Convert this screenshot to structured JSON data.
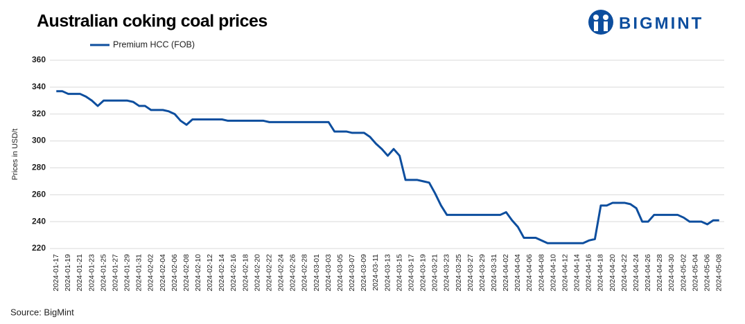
{
  "chart_data": {
    "type": "line",
    "title": "Australian coking coal prices",
    "brand": "BIGMINT",
    "source": "Source: BigMint",
    "y_label": "Prices in USD/t",
    "ylim": [
      220,
      360
    ],
    "yticks": [
      220,
      240,
      260,
      280,
      300,
      320,
      340,
      360
    ],
    "grid": true,
    "legend": "top",
    "categories": [
      "2024-01-17",
      null,
      "2024-01-19",
      null,
      "2024-01-21",
      null,
      "2024-01-23",
      null,
      "2024-01-25",
      null,
      "2024-01-27",
      null,
      "2024-01-29",
      null,
      "2024-01-31",
      null,
      "2024-02-02",
      null,
      "2024-02-04",
      null,
      "2024-02-06",
      null,
      "2024-02-08",
      null,
      "2024-02-10",
      null,
      "2024-02-12",
      null,
      "2024-02-14",
      null,
      "2024-02-16",
      null,
      "2024-02-18",
      null,
      "2024-02-20",
      null,
      "2024-02-22",
      null,
      "2024-02-24",
      null,
      "2024-02-26",
      null,
      "2024-02-28",
      null,
      "2024-03-01",
      null,
      "2024-03-03",
      null,
      "2024-03-05",
      null,
      "2024-03-07",
      null,
      "2024-03-09",
      null,
      "2024-03-11",
      null,
      "2024-03-13",
      null,
      "2024-03-15",
      null,
      "2024-03-17",
      null,
      "2024-03-19",
      null,
      "2024-03-21",
      null,
      "2024-03-23",
      null,
      "2024-03-25",
      null,
      "2024-03-27",
      null,
      "2024-03-29",
      null,
      "2024-03-31",
      null,
      "2024-04-02",
      null,
      "2024-04-04",
      null,
      "2024-04-06",
      null,
      "2024-04-08",
      null,
      "2024-04-10",
      null,
      "2024-04-12",
      null,
      "2024-04-14",
      null,
      "2024-04-16",
      null,
      "2024-04-18",
      null,
      "2024-04-20",
      null,
      "2024-04-22",
      null,
      "2024-04-24",
      null,
      "2024-04-26",
      null,
      "2024-04-28",
      null,
      "2024-04-30",
      null,
      "2024-05-02",
      null,
      "2024-05-04",
      null,
      "2024-05-06",
      null,
      "2024-05-08"
    ],
    "series": [
      {
        "name": "Premium HCC (FOB)",
        "color": "#0d4e9e",
        "values": [
          337,
          337,
          335,
          335,
          335,
          333,
          330,
          326,
          330,
          330,
          330,
          330,
          330,
          329,
          326,
          326,
          323,
          323,
          323,
          322,
          320,
          315,
          312,
          316,
          316,
          316,
          316,
          316,
          316,
          315,
          315,
          315,
          315,
          315,
          315,
          315,
          314,
          314,
          314,
          314,
          314,
          314,
          314,
          314,
          314,
          314,
          314,
          307,
          307,
          307,
          306,
          306,
          306,
          303,
          298,
          294,
          289,
          294,
          289,
          271,
          271,
          271,
          270,
          269,
          261,
          252,
          245,
          245,
          245,
          245,
          245,
          245,
          245,
          245,
          245,
          245,
          247,
          241,
          236,
          228,
          228,
          228,
          226,
          224,
          224,
          224,
          224,
          224,
          224,
          224,
          226,
          227,
          252,
          252,
          254,
          254,
          254,
          253,
          250,
          240,
          240,
          245,
          245,
          245,
          245,
          245,
          243,
          240,
          240,
          240,
          238,
          241,
          241
        ]
      }
    ]
  }
}
